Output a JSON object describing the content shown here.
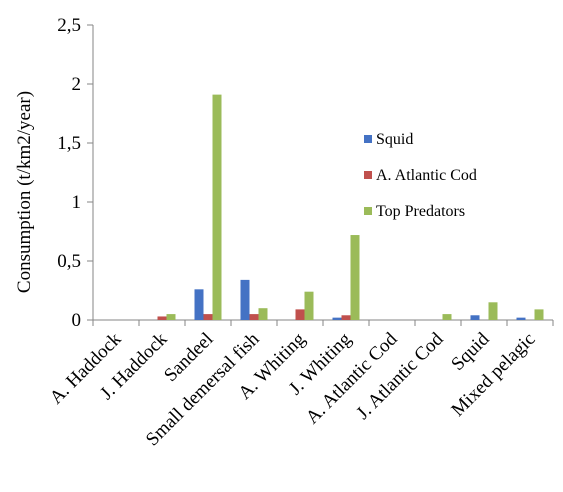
{
  "chart_data": {
    "type": "bar",
    "title": "",
    "xlabel": "",
    "ylabel": "Consumption (t/km2/year)",
    "ylim": [
      0,
      2.5
    ],
    "yticks": [
      0,
      0.5,
      1,
      1.5,
      2,
      2.5
    ],
    "ytick_labels": [
      "0",
      "0,5",
      "1",
      "1,5",
      "2",
      "2,5"
    ],
    "grid": false,
    "legend_position": "right",
    "categories": [
      "A. Haddock",
      "J. Haddock",
      "Sandeel",
      "Small demersal fish",
      "A. Whiting",
      "J. Whiting",
      "A. Atlantic Cod",
      "J. Atlantic Cod",
      "Squid",
      "Mixed pelagic"
    ],
    "series": [
      {
        "name": "Squid",
        "color": "#4472c4",
        "values": [
          0,
          0,
          0.26,
          0.34,
          0,
          0.02,
          0,
          0,
          0.04,
          0.02
        ]
      },
      {
        "name": "A. Atlantic Cod",
        "color": "#c0504d",
        "values": [
          0,
          0.03,
          0.05,
          0.05,
          0.09,
          0.04,
          0,
          0,
          0,
          0
        ]
      },
      {
        "name": "Top Predators",
        "color": "#9bbb59",
        "values": [
          0,
          0.05,
          1.91,
          0.1,
          0.24,
          0.72,
          0,
          0.05,
          0.15,
          0.09
        ]
      }
    ]
  }
}
